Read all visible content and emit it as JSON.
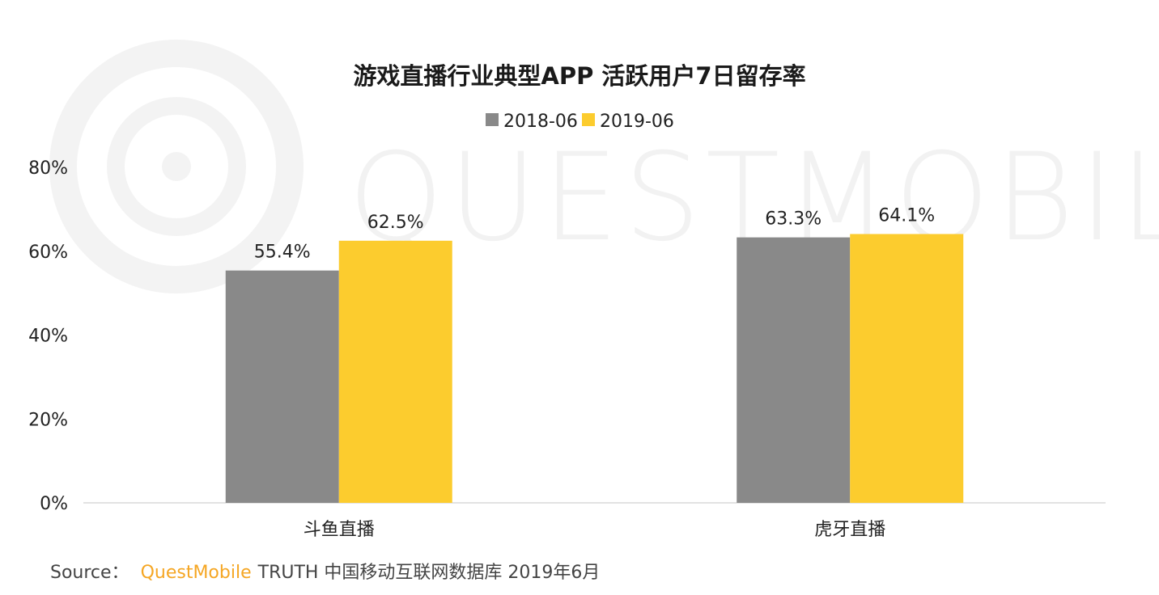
{
  "chart_data": {
    "type": "bar",
    "title": "游戏直播行业典型APP 活跃用户7日留存率",
    "categories": [
      "斗鱼直播",
      "虎牙直播"
    ],
    "series": [
      {
        "name": "2018-06",
        "values": [
          55.4,
          63.3
        ],
        "labels": [
          "55.4%",
          "63.3%"
        ],
        "color": "#898989"
      },
      {
        "name": "2019-06",
        "values": [
          62.5,
          64.1
        ],
        "labels": [
          "62.5%",
          "64.1%"
        ],
        "color": "#fccc2e"
      }
    ],
    "ylim": [
      0,
      80
    ],
    "yticks": [
      0,
      20,
      40,
      60,
      80
    ],
    "ytick_labels": [
      "0%",
      "20%",
      "40%",
      "60%",
      "80%"
    ],
    "xlabel": "",
    "ylabel": "",
    "legend_position": "top-center",
    "grid": false
  },
  "watermark": {
    "text": "QUESTMOBILE"
  },
  "source": {
    "prefix": "Source：",
    "brand": "QuestMobile",
    "rest": "TRUTH 中国移动互联网数据库 2019年6月"
  }
}
